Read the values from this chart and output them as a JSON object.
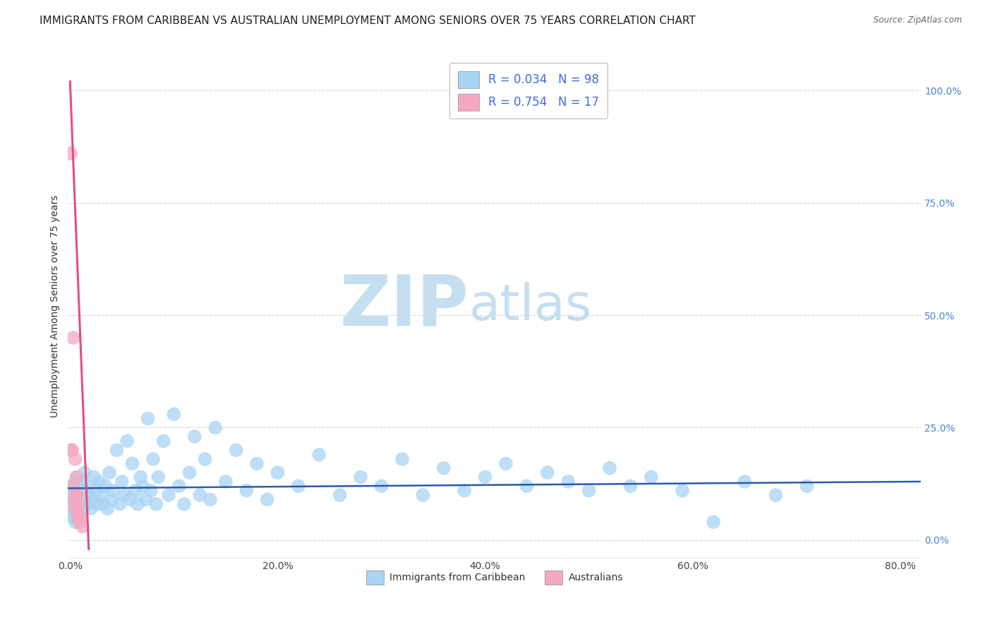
{
  "title": "IMMIGRANTS FROM CARIBBEAN VS AUSTRALIAN UNEMPLOYMENT AMONG SENIORS OVER 75 YEARS CORRELATION CHART",
  "source": "Source: ZipAtlas.com",
  "ylabel": "Unemployment Among Seniors over 75 years",
  "xlim": [
    -0.002,
    0.82
  ],
  "ylim": [
    -0.04,
    1.08
  ],
  "xticks": [
    0.0,
    0.2,
    0.4,
    0.6,
    0.8
  ],
  "xtick_labels": [
    "0.0%",
    "20.0%",
    "40.0%",
    "60.0%",
    "80.0%"
  ],
  "yticks": [
    0.0,
    0.25,
    0.5,
    0.75,
    1.0
  ],
  "ytick_labels": [
    "0.0%",
    "25.0%",
    "50.0%",
    "75.0%",
    "100.0%"
  ],
  "blue_scatter_x": [
    0.001,
    0.001,
    0.002,
    0.002,
    0.003,
    0.003,
    0.004,
    0.004,
    0.005,
    0.005,
    0.005,
    0.006,
    0.006,
    0.007,
    0.007,
    0.008,
    0.008,
    0.009,
    0.01,
    0.01,
    0.011,
    0.012,
    0.013,
    0.014,
    0.015,
    0.016,
    0.017,
    0.018,
    0.02,
    0.022,
    0.023,
    0.025,
    0.026,
    0.028,
    0.03,
    0.032,
    0.034,
    0.036,
    0.038,
    0.04,
    0.042,
    0.045,
    0.048,
    0.05,
    0.053,
    0.055,
    0.058,
    0.06,
    0.063,
    0.065,
    0.068,
    0.07,
    0.073,
    0.075,
    0.078,
    0.08,
    0.083,
    0.085,
    0.09,
    0.095,
    0.1,
    0.105,
    0.11,
    0.115,
    0.12,
    0.125,
    0.13,
    0.135,
    0.14,
    0.15,
    0.16,
    0.17,
    0.18,
    0.19,
    0.2,
    0.22,
    0.24,
    0.26,
    0.28,
    0.3,
    0.32,
    0.34,
    0.36,
    0.38,
    0.4,
    0.42,
    0.44,
    0.46,
    0.48,
    0.5,
    0.52,
    0.54,
    0.56,
    0.59,
    0.62,
    0.65,
    0.68,
    0.71
  ],
  "blue_scatter_y": [
    0.1,
    0.08,
    0.12,
    0.06,
    0.09,
    0.05,
    0.11,
    0.07,
    0.13,
    0.04,
    0.08,
    0.1,
    0.05,
    0.14,
    0.07,
    0.12,
    0.09,
    0.06,
    0.08,
    0.13,
    0.1,
    0.07,
    0.09,
    0.15,
    0.11,
    0.08,
    0.12,
    0.1,
    0.07,
    0.09,
    0.14,
    0.11,
    0.08,
    0.13,
    0.1,
    0.08,
    0.12,
    0.07,
    0.15,
    0.09,
    0.11,
    0.2,
    0.08,
    0.13,
    0.1,
    0.22,
    0.09,
    0.17,
    0.11,
    0.08,
    0.14,
    0.12,
    0.09,
    0.27,
    0.11,
    0.18,
    0.08,
    0.14,
    0.22,
    0.1,
    0.28,
    0.12,
    0.08,
    0.15,
    0.23,
    0.1,
    0.18,
    0.09,
    0.25,
    0.13,
    0.2,
    0.11,
    0.17,
    0.09,
    0.15,
    0.12,
    0.19,
    0.1,
    0.14,
    0.12,
    0.18,
    0.1,
    0.16,
    0.11,
    0.14,
    0.17,
    0.12,
    0.15,
    0.13,
    0.11,
    0.16,
    0.12,
    0.14,
    0.11,
    0.04,
    0.13,
    0.1,
    0.12
  ],
  "pink_scatter_x": [
    0.0005,
    0.001,
    0.002,
    0.003,
    0.003,
    0.004,
    0.005,
    0.005,
    0.006,
    0.006,
    0.007,
    0.007,
    0.008,
    0.008,
    0.009,
    0.01,
    0.012
  ],
  "pink_scatter_y": [
    0.86,
    0.2,
    0.2,
    0.45,
    0.12,
    0.09,
    0.18,
    0.07,
    0.14,
    0.1,
    0.1,
    0.06,
    0.08,
    0.05,
    0.04,
    0.05,
    0.03
  ],
  "blue_line_x": [
    -0.002,
    0.82
  ],
  "blue_line_y": [
    0.115,
    0.13
  ],
  "pink_line_x": [
    0.0,
    0.018
  ],
  "pink_line_y": [
    1.02,
    -0.02
  ],
  "blue_color": "#A8D4F5",
  "pink_color": "#F5A8C0",
  "blue_line_color": "#2B5BA8",
  "pink_line_color": "#E0507A",
  "legend_R1": "0.034",
  "legend_N1": "98",
  "legend_R2": "0.754",
  "legend_N2": "17",
  "legend_label1": "Immigrants from Caribbean",
  "legend_label2": "Australians",
  "watermark_zip": "ZIP",
  "watermark_atlas": "atlas",
  "watermark_color_zip": "#c5dff0",
  "watermark_color_atlas": "#c5dff0",
  "grid_color": "#cccccc",
  "title_fontsize": 11,
  "axis_label_fontsize": 10,
  "tick_fontsize": 10,
  "legend_fontsize": 12
}
